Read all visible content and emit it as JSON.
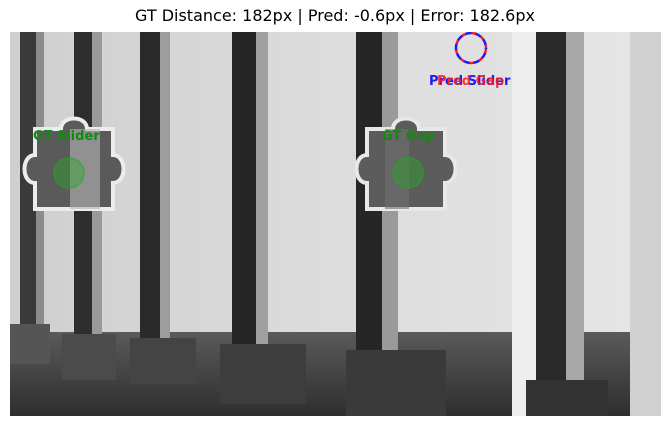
{
  "title": "GT Distance: 182px | Pred: -0.6px | Error: 182.6px",
  "labels": {
    "gt_slider": "GT Slider",
    "gt_gap": "GT Gap",
    "pred_slider": "Pred Slider",
    "pred_gap": "Pred Gap"
  },
  "colors": {
    "gt": "#22aa22",
    "pred_slider": "#1a1aff",
    "pred_gap": "#ff1a1a"
  }
}
